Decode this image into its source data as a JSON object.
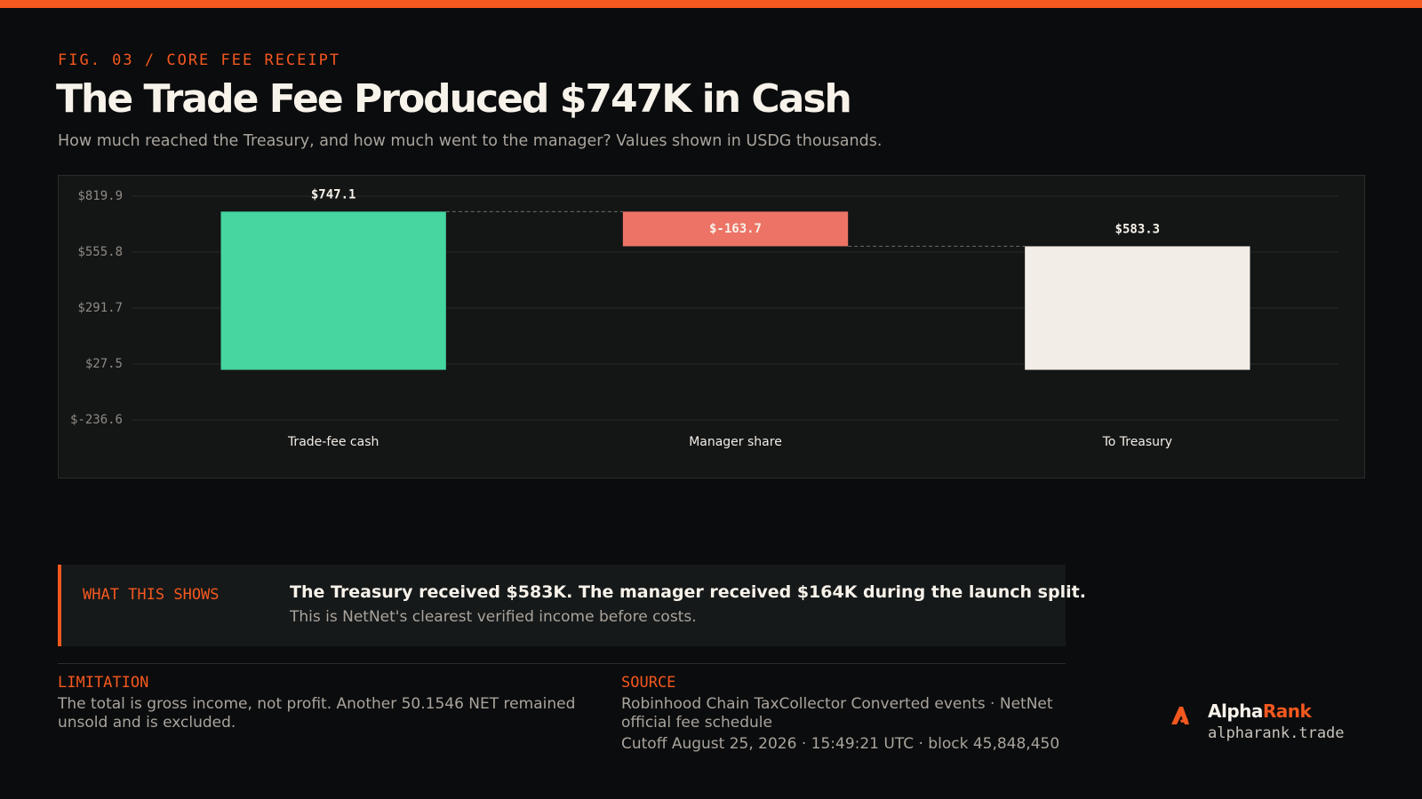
{
  "figure_label": "FIG. 03 / CORE FEE RECEIPT",
  "chart_data": {
    "type": "waterfall",
    "title": "The Trade Fee Produced $747K in Cash",
    "subtitle": "How much reached the Treasury, and how much went to the manager? Values shown in USDG thousands.",
    "categories": [
      "Trade-fee cash",
      "Manager share",
      "To Treasury"
    ],
    "values": [
      747.1,
      -163.7,
      583.3
    ],
    "value_labels": [
      "$747.1",
      "$-163.7",
      "$583.3"
    ],
    "colors": [
      "#46d6a0",
      "#ec7366",
      "#f2ede6"
    ],
    "ylim": [
      -236.6,
      819.9
    ],
    "yticks": [
      {
        "value": -236.6,
        "label": "$-236.6"
      },
      {
        "value": 27.5,
        "label": "$27.5"
      },
      {
        "value": 291.7,
        "label": "$291.7"
      },
      {
        "value": 555.8,
        "label": "$555.8"
      },
      {
        "value": 819.9,
        "label": "$819.9"
      }
    ],
    "grid": true
  },
  "callout": {
    "label": "WHAT THIS SHOWS",
    "headline": "The Treasury received $583K. The manager received $164K during the launch split.",
    "body": "This is NetNet's clearest verified income before costs."
  },
  "limitation": {
    "label": "LIMITATION",
    "text": "The total is gross income, not profit. Another 50.1546 NET remained unsold and is excluded."
  },
  "source": {
    "label": "SOURCE",
    "text": "Robinhood Chain TaxCollector Converted events · NetNet official fee schedule",
    "cutoff": "Cutoff August 25, 2026 · 15:49:21 UTC · block 45,848,450"
  },
  "brand": {
    "name": [
      "Alpha",
      "Rank"
    ],
    "url": "alpharank.trade"
  }
}
